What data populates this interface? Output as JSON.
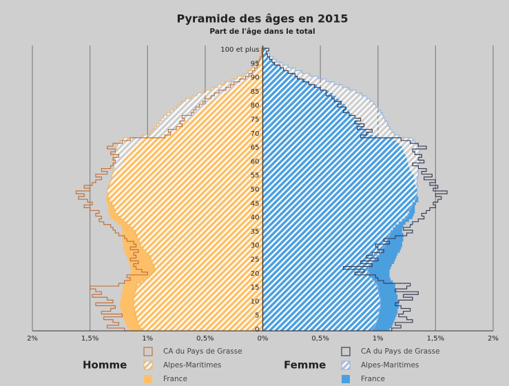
{
  "chart_data": {
    "type": "pyramid",
    "title": "Pyramide des âges en 2015",
    "subtitle": "Part de l'âge dans le total",
    "categories": [
      "0",
      null,
      null,
      null,
      null,
      "5",
      null,
      null,
      null,
      null,
      "10",
      null,
      null,
      null,
      null,
      "15",
      null,
      null,
      null,
      null,
      "20",
      null,
      null,
      null,
      null,
      "25",
      null,
      null,
      null,
      null,
      "30",
      null,
      null,
      null,
      null,
      "35",
      null,
      null,
      null,
      null,
      "40",
      null,
      null,
      null,
      null,
      "45",
      null,
      null,
      null,
      null,
      "50",
      null,
      null,
      null,
      null,
      "55",
      null,
      null,
      null,
      null,
      "60",
      null,
      null,
      null,
      null,
      "65",
      null,
      null,
      null,
      null,
      "70",
      null,
      null,
      null,
      null,
      "75",
      null,
      null,
      null,
      null,
      "80",
      null,
      null,
      null,
      null,
      "85",
      null,
      null,
      null,
      null,
      "90",
      null,
      null,
      null,
      null,
      "95",
      null,
      null,
      null,
      null,
      "100 et plus"
    ],
    "xlim": [
      -2,
      2
    ],
    "xticks": [
      {
        "value": -2,
        "label": "2%"
      },
      {
        "value": -1.5,
        "label": "1,5%"
      },
      {
        "value": -1,
        "label": "1%"
      },
      {
        "value": -0.5,
        "label": "0,5%"
      },
      {
        "value": 0,
        "label": "0%"
      },
      {
        "value": 0.5,
        "label": "0,5%"
      },
      {
        "value": 1,
        "label": "1%"
      },
      {
        "value": 1.5,
        "label": "1,5%"
      },
      {
        "value": 2,
        "label": "2%"
      }
    ],
    "grid": true,
    "groups": [
      {
        "name": "Homme",
        "side": "left",
        "series": [
          {
            "name": "CA du Pays de Grasse",
            "style": "outline",
            "color": "#c0703c",
            "values": [
              1.2,
              1.35,
              1.25,
              1.3,
              1.38,
              1.22,
              1.4,
              1.32,
              1.28,
              1.45,
              1.3,
              1.35,
              1.48,
              1.4,
              1.45,
              1.5,
              1.25,
              1.2,
              1.15,
              1.18,
              1.0,
              1.05,
              1.1,
              1.12,
              1.08,
              1.15,
              1.1,
              1.12,
              1.08,
              1.15,
              1.1,
              1.12,
              1.18,
              1.2,
              1.25,
              1.28,
              1.3,
              1.32,
              1.38,
              1.42,
              1.4,
              1.45,
              1.42,
              1.5,
              1.55,
              1.48,
              1.52,
              1.6,
              1.55,
              1.62,
              1.5,
              1.55,
              1.48,
              1.45,
              1.4,
              1.45,
              1.35,
              1.4,
              1.32,
              1.3,
              1.28,
              1.3,
              1.25,
              1.32,
              1.28,
              1.35,
              1.3,
              1.22,
              1.15,
              0.85,
              0.8,
              0.82,
              0.75,
              0.7,
              0.72,
              0.68,
              0.7,
              0.62,
              0.6,
              0.58,
              0.55,
              0.52,
              0.5,
              0.45,
              0.42,
              0.38,
              0.32,
              0.28,
              0.25,
              0.2,
              0.15,
              0.12,
              0.09,
              0.07,
              0.05,
              0.04,
              0.03,
              0.02,
              0.01,
              0.01,
              0.01
            ]
          },
          {
            "name": "Alpes-Maritimes",
            "style": "hatch",
            "color": "#f2b458",
            "values": [
              1.05,
              1.07,
              1.08,
              1.09,
              1.1,
              1.1,
              1.11,
              1.11,
              1.12,
              1.12,
              1.12,
              1.12,
              1.11,
              1.11,
              1.1,
              1.1,
              1.09,
              1.06,
              1.03,
              0.98,
              0.96,
              0.94,
              0.94,
              0.95,
              0.96,
              0.97,
              0.98,
              1.0,
              1.02,
              1.04,
              1.06,
              1.07,
              1.08,
              1.09,
              1.1,
              1.11,
              1.13,
              1.15,
              1.18,
              1.21,
              1.24,
              1.26,
              1.28,
              1.29,
              1.3,
              1.31,
              1.33,
              1.34,
              1.34,
              1.35,
              1.35,
              1.34,
              1.33,
              1.32,
              1.31,
              1.31,
              1.3,
              1.3,
              1.29,
              1.29,
              1.29,
              1.29,
              1.29,
              1.28,
              1.28,
              1.27,
              1.26,
              1.24,
              1.21,
              1.05,
              0.98,
              0.96,
              0.94,
              0.92,
              0.9,
              0.88,
              0.86,
              0.83,
              0.8,
              0.77,
              0.74,
              0.71,
              0.67,
              0.62,
              0.57,
              0.51,
              0.45,
              0.39,
              0.33,
              0.27,
              0.22,
              0.17,
              0.13,
              0.1,
              0.07,
              0.05,
              0.04,
              0.03,
              0.02,
              0.01,
              0.02
            ]
          },
          {
            "name": "France",
            "style": "fill",
            "color": "#fdc068",
            "values": [
              1.16,
              1.18,
              1.19,
              1.2,
              1.21,
              1.22,
              1.23,
              1.23,
              1.24,
              1.24,
              1.24,
              1.23,
              1.23,
              1.22,
              1.22,
              1.21,
              1.21,
              1.19,
              1.17,
              1.16,
              1.15,
              1.14,
              1.15,
              1.15,
              1.16,
              1.17,
              1.18,
              1.19,
              1.2,
              1.21,
              1.21,
              1.21,
              1.22,
              1.22,
              1.22,
              1.22,
              1.22,
              1.23,
              1.26,
              1.29,
              1.32,
              1.33,
              1.34,
              1.34,
              1.34,
              1.35,
              1.36,
              1.36,
              1.35,
              1.35,
              1.34,
              1.33,
              1.32,
              1.31,
              1.3,
              1.29,
              1.27,
              1.26,
              1.24,
              1.22,
              1.21,
              1.2,
              1.18,
              1.16,
              1.14,
              1.12,
              1.1,
              1.07,
              1.03,
              0.88,
              0.8,
              0.77,
              0.74,
              0.71,
              0.68,
              0.64,
              0.61,
              0.58,
              0.55,
              0.52,
              0.49,
              0.46,
              0.42,
              0.38,
              0.34,
              0.3,
              0.26,
              0.22,
              0.18,
              0.15,
              0.12,
              0.09,
              0.07,
              0.05,
              0.04,
              0.03,
              0.02,
              0.01,
              0.01,
              0.01,
              0.01
            ]
          }
        ]
      },
      {
        "name": "Femme",
        "side": "right",
        "series": [
          {
            "name": "CA du Pays de Grasse",
            "style": "outline",
            "color": "#3a3e58",
            "values": [
              1.12,
              1.2,
              1.15,
              1.3,
              1.25,
              1.18,
              1.22,
              1.28,
              1.2,
              1.15,
              1.18,
              1.3,
              1.22,
              1.35,
              1.15,
              1.25,
              1.28,
              1.05,
              1.0,
              0.98,
              0.8,
              0.88,
              0.7,
              0.95,
              0.85,
              1.0,
              0.9,
              0.95,
              1.05,
              1.0,
              0.98,
              1.1,
              1.05,
              1.15,
              1.25,
              1.3,
              1.22,
              1.28,
              1.3,
              1.35,
              1.4,
              1.38,
              1.42,
              1.45,
              1.5,
              1.48,
              1.52,
              1.55,
              1.5,
              1.6,
              1.48,
              1.52,
              1.45,
              1.5,
              1.4,
              1.47,
              1.38,
              1.42,
              1.35,
              1.3,
              1.4,
              1.35,
              1.38,
              1.32,
              1.3,
              1.42,
              1.35,
              1.28,
              1.2,
              0.85,
              0.9,
              0.95,
              0.82,
              0.88,
              0.8,
              0.85,
              0.8,
              0.75,
              0.7,
              0.72,
              0.65,
              0.68,
              0.62,
              0.6,
              0.55,
              0.55,
              0.5,
              0.45,
              0.4,
              0.35,
              0.3,
              0.28,
              0.22,
              0.18,
              0.15,
              0.1,
              0.08,
              0.06,
              0.04,
              0.03,
              0.05
            ]
          },
          {
            "name": "Alpes-Maritimes",
            "style": "hatch",
            "color": "#8fb2e0",
            "values": [
              0.95,
              0.97,
              0.98,
              0.99,
              1.0,
              1.0,
              1.01,
              1.01,
              1.02,
              1.02,
              1.02,
              1.02,
              1.01,
              1.01,
              1.0,
              1.0,
              0.99,
              0.97,
              0.95,
              0.92,
              0.92,
              0.91,
              0.92,
              0.93,
              0.95,
              0.97,
              0.99,
              1.01,
              1.03,
              1.04,
              1.06,
              1.07,
              1.08,
              1.09,
              1.1,
              1.11,
              1.13,
              1.15,
              1.18,
              1.21,
              1.24,
              1.26,
              1.27,
              1.28,
              1.29,
              1.3,
              1.32,
              1.33,
              1.33,
              1.34,
              1.34,
              1.34,
              1.34,
              1.34,
              1.34,
              1.35,
              1.35,
              1.35,
              1.35,
              1.35,
              1.36,
              1.36,
              1.36,
              1.36,
              1.36,
              1.35,
              1.34,
              1.32,
              1.3,
              1.18,
              1.14,
              1.12,
              1.1,
              1.09,
              1.08,
              1.06,
              1.05,
              1.04,
              1.02,
              1.0,
              0.98,
              0.96,
              0.93,
              0.9,
              0.86,
              0.81,
              0.75,
              0.69,
              0.62,
              0.55,
              0.48,
              0.41,
              0.34,
              0.28,
              0.22,
              0.17,
              0.12,
              0.09,
              0.06,
              0.04,
              0.06
            ]
          },
          {
            "name": "France",
            "style": "fill",
            "color": "#4a9fdf",
            "values": [
              1.1,
              1.12,
              1.13,
              1.14,
              1.15,
              1.16,
              1.17,
              1.17,
              1.18,
              1.18,
              1.18,
              1.17,
              1.17,
              1.16,
              1.16,
              1.15,
              1.15,
              1.13,
              1.11,
              1.1,
              1.1,
              1.1,
              1.11,
              1.12,
              1.14,
              1.15,
              1.16,
              1.17,
              1.19,
              1.2,
              1.21,
              1.21,
              1.22,
              1.22,
              1.22,
              1.21,
              1.21,
              1.22,
              1.24,
              1.27,
              1.3,
              1.31,
              1.32,
              1.32,
              1.32,
              1.33,
              1.35,
              1.35,
              1.34,
              1.34,
              1.34,
              1.33,
              1.32,
              1.32,
              1.31,
              1.31,
              1.29,
              1.28,
              1.27,
              1.26,
              1.26,
              1.25,
              1.24,
              1.23,
              1.22,
              1.21,
              1.19,
              1.17,
              1.14,
              0.99,
              0.92,
              0.9,
              0.88,
              0.86,
              0.83,
              0.81,
              0.79,
              0.77,
              0.75,
              0.73,
              0.72,
              0.7,
              0.67,
              0.64,
              0.61,
              0.57,
              0.52,
              0.47,
              0.42,
              0.37,
              0.32,
              0.27,
              0.22,
              0.18,
              0.14,
              0.11,
              0.08,
              0.06,
              0.04,
              0.03,
              0.04
            ]
          }
        ]
      }
    ]
  }
}
